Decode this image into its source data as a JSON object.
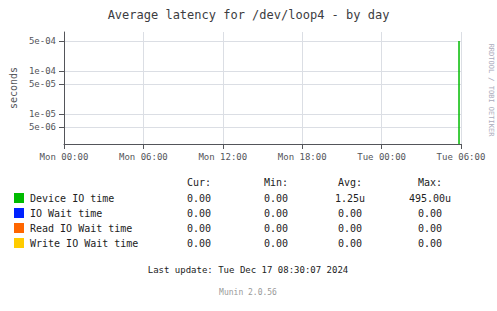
{
  "chart_data": {
    "type": "line",
    "title": "Average latency for /dev/loop4 - by day",
    "ylabel": "seconds",
    "x": [
      29.85,
      29.85
    ],
    "series": [
      {
        "name": "Device IO time",
        "color": "#00bb00",
        "values": [
          2e-06,
          0.000495
        ]
      },
      {
        "name": "IO Wait time",
        "color": "#0022ff",
        "values": [
          null,
          null
        ]
      },
      {
        "name": "Read IO Wait time",
        "color": "#ff6600",
        "values": [
          null,
          null
        ]
      },
      {
        "name": "Write IO Wait time",
        "color": "#ffcc00",
        "values": [
          null,
          null
        ]
      }
    ],
    "xlim": [
      0,
      30
    ],
    "xticks": [
      {
        "value": 0,
        "label": "Mon 00:00"
      },
      {
        "value": 6,
        "label": "Mon 06:00"
      },
      {
        "value": 12,
        "label": "Mon 12:00"
      },
      {
        "value": 18,
        "label": "Mon 18:00"
      },
      {
        "value": 24,
        "label": "Tue 00:00"
      },
      {
        "value": 30,
        "label": "Tue 06:00"
      }
    ],
    "ylim": [
      2e-06,
      0.0008
    ],
    "yticks": [
      {
        "value": 5e-06,
        "label": "5e-06"
      },
      {
        "value": 1e-05,
        "label": "1e-05"
      },
      {
        "value": 5e-05,
        "label": "5e-05"
      },
      {
        "value": 0.0001,
        "label": "1e-04"
      },
      {
        "value": 0.0005,
        "label": "5e-04"
      }
    ],
    "log": "y",
    "grid": true,
    "table": {
      "headers": [
        "Cur:",
        "Min:",
        "Avg:",
        "Max:"
      ],
      "rows": [
        [
          "0.00",
          "0.00",
          "1.25u",
          "495.00u"
        ],
        [
          "0.00",
          "0.00",
          "0.00",
          "0.00"
        ],
        [
          "0.00",
          "0.00",
          "0.00",
          "0.00"
        ],
        [
          "0.00",
          "0.00",
          "0.00",
          "0.00"
        ]
      ]
    },
    "annotations": [
      "Last update: Tue Dec 17 08:30:07 2024",
      "Munin 2.0.56",
      "RRDTOOL / TOBI OETIKER"
    ]
  }
}
